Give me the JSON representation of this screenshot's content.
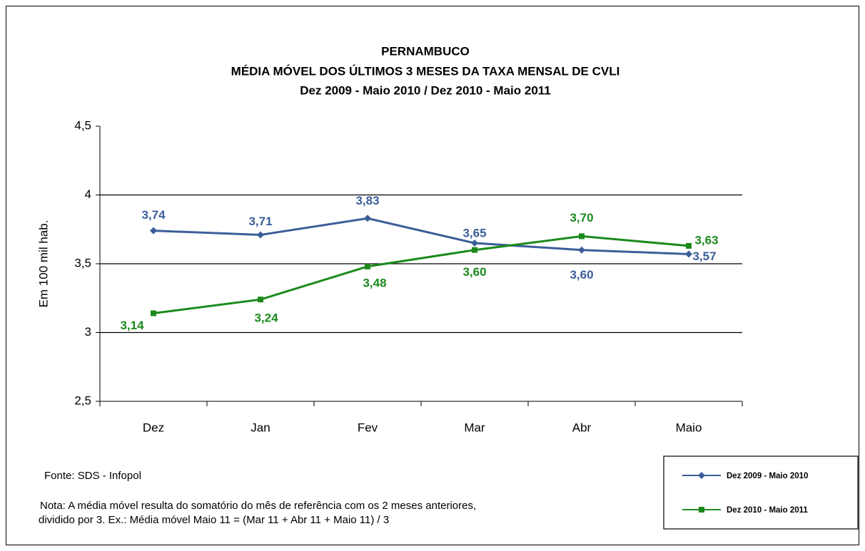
{
  "chart_data": {
    "type": "line",
    "title": [
      "PERNAMBUCO",
      "MÉDIA MÓVEL DOS ÚLTIMOS 3 MESES DA TAXA MENSAL DE CVLI",
      "Dez 2009 - Maio 2010 / Dez 2010 - Maio 2011"
    ],
    "y_label": "Em 100 mil hab.",
    "categories": [
      "Dez",
      "Jan",
      "Fev",
      "Mar",
      "Abr",
      "Maio"
    ],
    "series": [
      {
        "name": "Dez 2009 - Maio 2010",
        "color": "#3b5e99",
        "marker": "diamond",
        "values": [
          3.74,
          3.71,
          3.83,
          3.65,
          3.6,
          3.57
        ],
        "value_labels": [
          "3,74",
          "3,71",
          "3,83",
          "3,65",
          "3,60",
          "3,57"
        ]
      },
      {
        "name": "Dez 2010 - Maio 2011",
        "color": "#1b8a1b",
        "marker": "square",
        "values": [
          3.14,
          3.24,
          3.48,
          3.6,
          3.7,
          3.63
        ],
        "value_labels": [
          "3,14",
          "3,24",
          "3,48",
          "3,60",
          "3,70",
          "3,63"
        ]
      }
    ],
    "ylim": [
      2.5,
      4.5
    ],
    "yticks": [
      {
        "value": 2.5,
        "label": "2,5"
      },
      3,
      {
        "value": 3.5,
        "label": "3,5"
      },
      4,
      {
        "value": 4.5,
        "label": "4,5"
      }
    ],
    "grid": true,
    "legend": "bottom-right",
    "source": "Fonte: SDS - Infopol",
    "note": [
      "Nota: A média móvel resulta do somatório do mês de referência com os 2 meses anteriores,",
      "dividido por 3. Ex.: Média móvel  Maio 11 = (Mar 11 + Abr 11 + Maio 11) / 3"
    ]
  }
}
